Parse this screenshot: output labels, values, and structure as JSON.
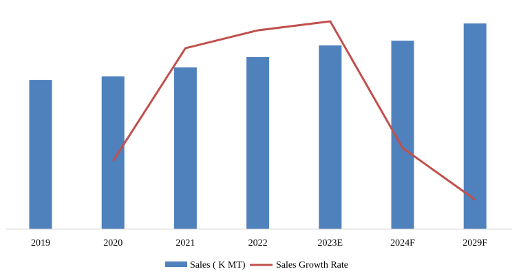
{
  "chart_data": {
    "type": "bar",
    "categories": [
      "2019",
      "2020",
      "2021",
      "2022",
      "2023E",
      "2024F",
      "2029F"
    ],
    "series": [
      {
        "name": "Sales ( K MT)",
        "type": "bar",
        "color": "#4f81bd",
        "values": [
          69.3,
          70.9,
          75.1,
          79.9,
          85.3,
          87.5,
          95.5
        ]
      },
      {
        "name": "Sales Growth Rate",
        "type": "line",
        "color": "#c0504d",
        "values": [
          null,
          31.6,
          84.0,
          92.3,
          96.5,
          37.7,
          13.7
        ]
      }
    ],
    "value_note_scale": [
      0,
      100
    ],
    "title": "",
    "xlabel": "",
    "ylabel": "",
    "grid": false,
    "legend_position": "bottom"
  }
}
